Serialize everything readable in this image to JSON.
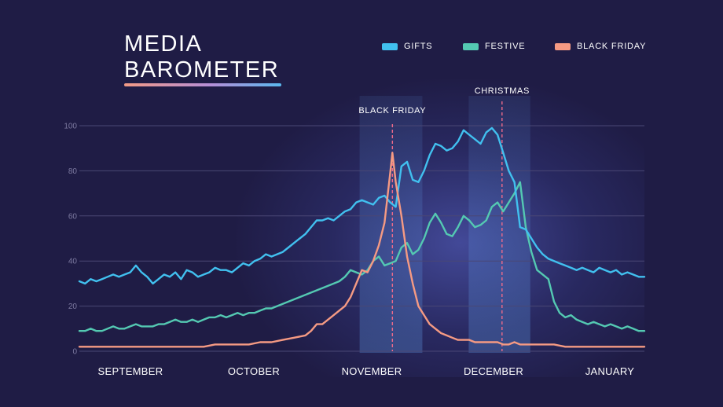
{
  "header": {
    "title_line1": "MEDIA",
    "title_line2": "BAROMETER"
  },
  "legend": [
    {
      "label": "GIFTS",
      "color": "#41c0ef"
    },
    {
      "label": "FESTIVE",
      "color": "#54c9b2"
    },
    {
      "label": "BLACK FRIDAY",
      "color": "#f59a83"
    }
  ],
  "chart_data": {
    "type": "line",
    "ylim": [
      0,
      100
    ],
    "yticks": [
      "0",
      "20",
      "40",
      "60",
      "80",
      "100"
    ],
    "x_labels": [
      "SEPTEMBER",
      "OCTOBER",
      "NOVEMBER",
      "DECEMBER",
      "JANUARY"
    ],
    "grid": true,
    "legend_position": "top-right",
    "annotations": [
      {
        "label": "BLACK FRIDAY",
        "x": 0.554
      },
      {
        "label": "CHRISTMAS",
        "x": 0.748
      }
    ],
    "highlight_bands": [
      [
        0.496,
        0.607
      ],
      [
        0.689,
        0.798
      ]
    ],
    "series": [
      {
        "name": "GIFTS",
        "color": "#41c0ef",
        "points": [
          [
            0.0,
            31
          ],
          [
            0.01,
            30
          ],
          [
            0.02,
            32
          ],
          [
            0.03,
            31
          ],
          [
            0.04,
            32
          ],
          [
            0.05,
            33
          ],
          [
            0.06,
            34
          ],
          [
            0.07,
            33
          ],
          [
            0.08,
            34
          ],
          [
            0.09,
            35
          ],
          [
            0.1,
            38
          ],
          [
            0.11,
            35
          ],
          [
            0.12,
            33
          ],
          [
            0.13,
            30
          ],
          [
            0.14,
            32
          ],
          [
            0.15,
            34
          ],
          [
            0.16,
            33
          ],
          [
            0.17,
            35
          ],
          [
            0.18,
            32
          ],
          [
            0.19,
            36
          ],
          [
            0.2,
            35
          ],
          [
            0.21,
            33
          ],
          [
            0.22,
            34
          ],
          [
            0.23,
            35
          ],
          [
            0.24,
            37
          ],
          [
            0.25,
            36
          ],
          [
            0.26,
            36
          ],
          [
            0.27,
            35
          ],
          [
            0.28,
            37
          ],
          [
            0.29,
            39
          ],
          [
            0.3,
            38
          ],
          [
            0.31,
            40
          ],
          [
            0.32,
            41
          ],
          [
            0.33,
            43
          ],
          [
            0.34,
            42
          ],
          [
            0.35,
            43
          ],
          [
            0.36,
            44
          ],
          [
            0.37,
            46
          ],
          [
            0.38,
            48
          ],
          [
            0.39,
            50
          ],
          [
            0.4,
            52
          ],
          [
            0.41,
            55
          ],
          [
            0.42,
            58
          ],
          [
            0.43,
            58
          ],
          [
            0.44,
            59
          ],
          [
            0.45,
            58
          ],
          [
            0.46,
            60
          ],
          [
            0.47,
            62
          ],
          [
            0.48,
            63
          ],
          [
            0.49,
            66
          ],
          [
            0.5,
            67
          ],
          [
            0.51,
            66
          ],
          [
            0.52,
            65
          ],
          [
            0.53,
            68
          ],
          [
            0.54,
            69
          ],
          [
            0.55,
            66
          ],
          [
            0.56,
            64
          ],
          [
            0.57,
            82
          ],
          [
            0.58,
            84
          ],
          [
            0.59,
            76
          ],
          [
            0.6,
            75
          ],
          [
            0.61,
            80
          ],
          [
            0.62,
            87
          ],
          [
            0.63,
            92
          ],
          [
            0.64,
            91
          ],
          [
            0.65,
            89
          ],
          [
            0.66,
            90
          ],
          [
            0.67,
            93
          ],
          [
            0.68,
            98
          ],
          [
            0.69,
            96
          ],
          [
            0.7,
            94
          ],
          [
            0.71,
            92
          ],
          [
            0.72,
            97
          ],
          [
            0.73,
            99
          ],
          [
            0.74,
            96
          ],
          [
            0.75,
            88
          ],
          [
            0.76,
            80
          ],
          [
            0.77,
            75
          ],
          [
            0.78,
            55
          ],
          [
            0.79,
            54
          ],
          [
            0.8,
            50
          ],
          [
            0.81,
            46
          ],
          [
            0.82,
            43
          ],
          [
            0.83,
            41
          ],
          [
            0.84,
            40
          ],
          [
            0.85,
            39
          ],
          [
            0.86,
            38
          ],
          [
            0.87,
            37
          ],
          [
            0.88,
            36
          ],
          [
            0.89,
            37
          ],
          [
            0.9,
            36
          ],
          [
            0.91,
            35
          ],
          [
            0.92,
            37
          ],
          [
            0.93,
            36
          ],
          [
            0.94,
            35
          ],
          [
            0.95,
            36
          ],
          [
            0.96,
            34
          ],
          [
            0.97,
            35
          ],
          [
            0.98,
            34
          ],
          [
            0.99,
            33
          ],
          [
            1.0,
            33
          ]
        ]
      },
      {
        "name": "FESTIVE",
        "color": "#54c9b2",
        "points": [
          [
            0.0,
            9
          ],
          [
            0.01,
            9
          ],
          [
            0.02,
            10
          ],
          [
            0.03,
            9
          ],
          [
            0.04,
            9
          ],
          [
            0.05,
            10
          ],
          [
            0.06,
            11
          ],
          [
            0.07,
            10
          ],
          [
            0.08,
            10
          ],
          [
            0.09,
            11
          ],
          [
            0.1,
            12
          ],
          [
            0.11,
            11
          ],
          [
            0.12,
            11
          ],
          [
            0.13,
            11
          ],
          [
            0.14,
            12
          ],
          [
            0.15,
            12
          ],
          [
            0.16,
            13
          ],
          [
            0.17,
            14
          ],
          [
            0.18,
            13
          ],
          [
            0.19,
            13
          ],
          [
            0.2,
            14
          ],
          [
            0.21,
            13
          ],
          [
            0.22,
            14
          ],
          [
            0.23,
            15
          ],
          [
            0.24,
            15
          ],
          [
            0.25,
            16
          ],
          [
            0.26,
            15
          ],
          [
            0.27,
            16
          ],
          [
            0.28,
            17
          ],
          [
            0.29,
            16
          ],
          [
            0.3,
            17
          ],
          [
            0.31,
            17
          ],
          [
            0.32,
            18
          ],
          [
            0.33,
            19
          ],
          [
            0.34,
            19
          ],
          [
            0.35,
            20
          ],
          [
            0.36,
            21
          ],
          [
            0.37,
            22
          ],
          [
            0.38,
            23
          ],
          [
            0.39,
            24
          ],
          [
            0.4,
            25
          ],
          [
            0.41,
            26
          ],
          [
            0.42,
            27
          ],
          [
            0.43,
            28
          ],
          [
            0.44,
            29
          ],
          [
            0.45,
            30
          ],
          [
            0.46,
            31
          ],
          [
            0.47,
            33
          ],
          [
            0.48,
            36
          ],
          [
            0.49,
            35
          ],
          [
            0.5,
            34
          ],
          [
            0.51,
            36
          ],
          [
            0.52,
            40
          ],
          [
            0.53,
            42
          ],
          [
            0.54,
            38
          ],
          [
            0.55,
            39
          ],
          [
            0.56,
            40
          ],
          [
            0.57,
            46
          ],
          [
            0.58,
            48
          ],
          [
            0.59,
            43
          ],
          [
            0.6,
            45
          ],
          [
            0.61,
            50
          ],
          [
            0.62,
            57
          ],
          [
            0.63,
            61
          ],
          [
            0.64,
            57
          ],
          [
            0.65,
            52
          ],
          [
            0.66,
            51
          ],
          [
            0.67,
            55
          ],
          [
            0.68,
            60
          ],
          [
            0.69,
            58
          ],
          [
            0.7,
            55
          ],
          [
            0.71,
            56
          ],
          [
            0.72,
            58
          ],
          [
            0.73,
            64
          ],
          [
            0.74,
            66
          ],
          [
            0.75,
            62
          ],
          [
            0.76,
            66
          ],
          [
            0.77,
            70
          ],
          [
            0.78,
            75
          ],
          [
            0.79,
            55
          ],
          [
            0.8,
            44
          ],
          [
            0.81,
            36
          ],
          [
            0.82,
            34
          ],
          [
            0.83,
            32
          ],
          [
            0.84,
            22
          ],
          [
            0.85,
            17
          ],
          [
            0.86,
            15
          ],
          [
            0.87,
            16
          ],
          [
            0.88,
            14
          ],
          [
            0.89,
            13
          ],
          [
            0.9,
            12
          ],
          [
            0.91,
            13
          ],
          [
            0.92,
            12
          ],
          [
            0.93,
            11
          ],
          [
            0.94,
            12
          ],
          [
            0.95,
            11
          ],
          [
            0.96,
            10
          ],
          [
            0.97,
            11
          ],
          [
            0.98,
            10
          ],
          [
            0.99,
            9
          ],
          [
            1.0,
            9
          ]
        ]
      },
      {
        "name": "BLACK FRIDAY",
        "color": "#f59a83",
        "points": [
          [
            0.0,
            2
          ],
          [
            0.02,
            2
          ],
          [
            0.04,
            2
          ],
          [
            0.06,
            2
          ],
          [
            0.08,
            2
          ],
          [
            0.1,
            2
          ],
          [
            0.12,
            2
          ],
          [
            0.14,
            2
          ],
          [
            0.16,
            2
          ],
          [
            0.18,
            2
          ],
          [
            0.2,
            2
          ],
          [
            0.22,
            2
          ],
          [
            0.24,
            3
          ],
          [
            0.26,
            3
          ],
          [
            0.28,
            3
          ],
          [
            0.3,
            3
          ],
          [
            0.32,
            4
          ],
          [
            0.34,
            4
          ],
          [
            0.36,
            5
          ],
          [
            0.38,
            6
          ],
          [
            0.4,
            7
          ],
          [
            0.41,
            9
          ],
          [
            0.42,
            12
          ],
          [
            0.43,
            12
          ],
          [
            0.44,
            14
          ],
          [
            0.45,
            16
          ],
          [
            0.46,
            18
          ],
          [
            0.47,
            20
          ],
          [
            0.48,
            24
          ],
          [
            0.49,
            30
          ],
          [
            0.5,
            36
          ],
          [
            0.51,
            35
          ],
          [
            0.52,
            40
          ],
          [
            0.53,
            47
          ],
          [
            0.54,
            57
          ],
          [
            0.55,
            79
          ],
          [
            0.554,
            88
          ],
          [
            0.56,
            75
          ],
          [
            0.57,
            60
          ],
          [
            0.58,
            42
          ],
          [
            0.59,
            30
          ],
          [
            0.6,
            20
          ],
          [
            0.61,
            16
          ],
          [
            0.62,
            12
          ],
          [
            0.63,
            10
          ],
          [
            0.64,
            8
          ],
          [
            0.65,
            7
          ],
          [
            0.66,
            6
          ],
          [
            0.67,
            5
          ],
          [
            0.68,
            5
          ],
          [
            0.69,
            5
          ],
          [
            0.7,
            4
          ],
          [
            0.71,
            4
          ],
          [
            0.72,
            4
          ],
          [
            0.73,
            4
          ],
          [
            0.74,
            4
          ],
          [
            0.75,
            3
          ],
          [
            0.76,
            3
          ],
          [
            0.77,
            4
          ],
          [
            0.78,
            3
          ],
          [
            0.79,
            3
          ],
          [
            0.8,
            3
          ],
          [
            0.82,
            3
          ],
          [
            0.84,
            3
          ],
          [
            0.86,
            2
          ],
          [
            0.88,
            2
          ],
          [
            0.9,
            2
          ],
          [
            0.92,
            2
          ],
          [
            0.94,
            2
          ],
          [
            0.96,
            2
          ],
          [
            0.98,
            2
          ],
          [
            1.0,
            2
          ]
        ]
      }
    ]
  }
}
